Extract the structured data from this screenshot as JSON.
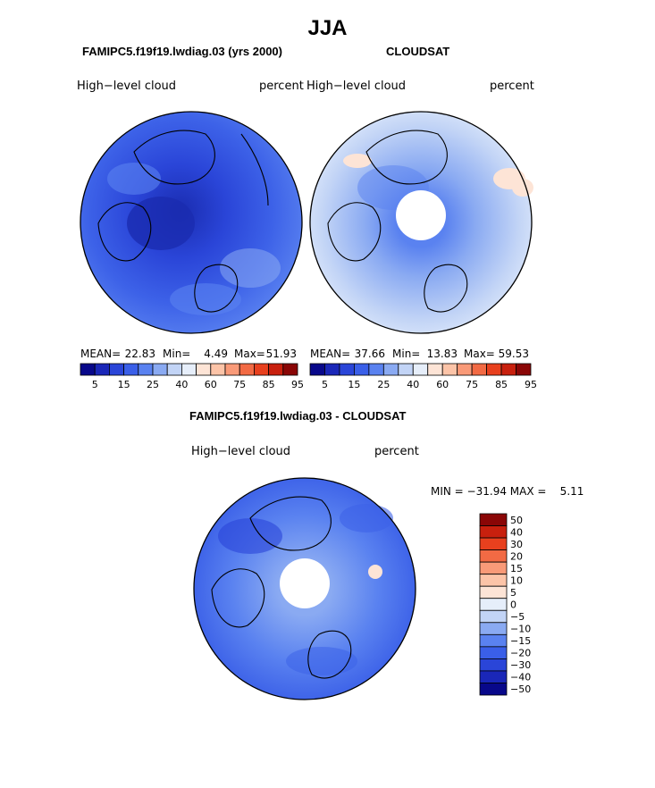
{
  "title": "JJA",
  "panels": [
    {
      "name": "model",
      "title": "FAMIPC5.f19f19.lwdiag.03 (yrs 2000)",
      "variable": "High−level cloud",
      "units": "percent",
      "stats": {
        "mean_label": "MEAN=",
        "mean": "22.83",
        "min_label": "Min=",
        "min": "4.49",
        "max_label": "Max=",
        "max": "51.93"
      }
    },
    {
      "name": "obs",
      "title": "CLOUDSAT",
      "variable": "High−level cloud",
      "units": "percent",
      "stats": {
        "mean_label": "MEAN=",
        "mean": "37.66",
        "min_label": "Min=",
        "min": "13.83",
        "max_label": "Max=",
        "max": "59.53"
      }
    },
    {
      "name": "difference",
      "title": "FAMIPC5.f19f19.lwdiag.03 - CLOUDSAT",
      "variable": "High−level cloud",
      "units": "percent",
      "stats_text": "MIN = −31.94 MAX =    5.11"
    }
  ],
  "colorbar_abs": {
    "colors": [
      "#08088a",
      "#1a27b8",
      "#2a45d8",
      "#3a5fe8",
      "#5a82f0",
      "#8aaaf2",
      "#c2d4f6",
      "#e6eefa",
      "#fde4d6",
      "#fcc4a8",
      "#f99a78",
      "#f26a44",
      "#e8401e",
      "#c8200e",
      "#8a0606"
    ],
    "labels": [
      "5",
      "15",
      "25",
      "40",
      "60",
      "75",
      "85",
      "95"
    ]
  },
  "colorbar_diff": {
    "colors": [
      "#08088a",
      "#1a27b8",
      "#2a45d8",
      "#3a5fe8",
      "#5a82f0",
      "#8aaaf2",
      "#c2d4f6",
      "#e6eefa",
      "#fde4d6",
      "#fcc4a8",
      "#f99a78",
      "#f26a44",
      "#e8401e",
      "#c8200e",
      "#8a0606"
    ],
    "labels": [
      "−50",
      "−40",
      "−30",
      "−20",
      "−15",
      "−10",
      "−5",
      "0",
      "5",
      "10",
      "15",
      "20",
      "30",
      "40",
      "50"
    ]
  },
  "chart_data": [
    {
      "type": "heatmap",
      "projection": "polar-stereographic",
      "title": "FAMIPC5.f19f19.lwdiag.03 (yrs 2000)",
      "variable": "High-level cloud",
      "units": "percent",
      "mean": 22.83,
      "min": 4.49,
      "max": 51.93,
      "contour_levels": [
        5,
        10,
        15,
        20,
        25,
        30,
        35,
        40,
        50,
        60,
        65,
        75,
        80,
        85,
        95
      ]
    },
    {
      "type": "heatmap",
      "projection": "polar-stereographic",
      "title": "CLOUDSAT",
      "variable": "High-level cloud",
      "units": "percent",
      "mean": 37.66,
      "min": 13.83,
      "max": 59.53,
      "contour_levels": [
        5,
        10,
        15,
        20,
        25,
        30,
        35,
        40,
        50,
        60,
        65,
        75,
        80,
        85,
        95
      ]
    },
    {
      "type": "heatmap",
      "projection": "polar-stereographic",
      "title": "FAMIPC5.f19f19.lwdiag.03 - CLOUDSAT",
      "variable": "High-level cloud",
      "units": "percent",
      "min": -31.94,
      "max": 5.11,
      "contour_levels": [
        -50,
        -40,
        -30,
        -20,
        -15,
        -10,
        -5,
        0,
        5,
        10,
        15,
        20,
        30,
        40,
        50
      ]
    }
  ]
}
